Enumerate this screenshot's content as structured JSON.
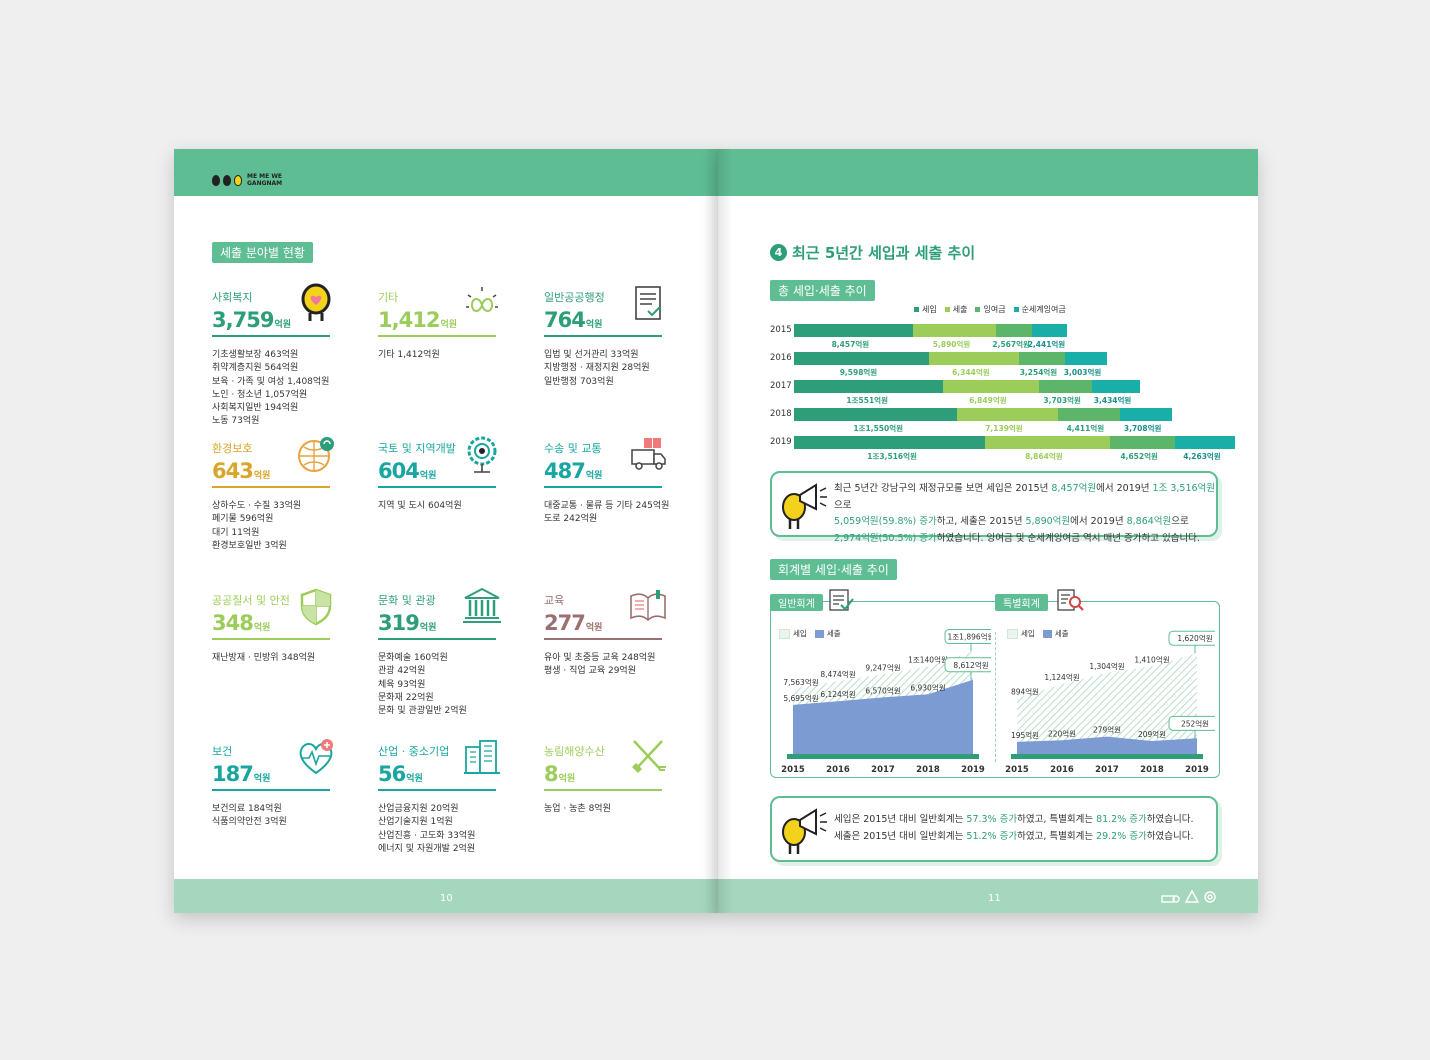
{
  "left_page": {
    "logo": {
      "line1": "ME ME WE",
      "line2": "GANGNAM"
    },
    "section_title": "세출 분야별 현황",
    "page_number": "10",
    "categories": [
      {
        "name": "사회복지",
        "value": "3,759",
        "unit": "억원",
        "color": "#2e9e7a",
        "name_color": "#2e9e7a",
        "icon": "lightbulb-heart-icon",
        "items": [
          "기초생활보장 463억원",
          "취약계층지원 564억원",
          "보육 · 가족 및 여성 1,408억원",
          "노인 · 청소년 1,057억원",
          "사회복지일반 194억원",
          "노동 73억원"
        ]
      },
      {
        "name": "기타",
        "value": "1,412",
        "unit": "억원",
        "color": "#9ccc5a",
        "name_color": "#9ccc5a",
        "icon": "infinity-sparkle-icon",
        "items": [
          "기타 1,412억원"
        ]
      },
      {
        "name": "일반공공행정",
        "value": "764",
        "unit": "억원",
        "color": "#2e9e7a",
        "name_color": "#2e9e7a",
        "icon": "document-check-icon",
        "items": [
          "입법 및 선거관리 33억원",
          "지방행정 · 재정지원 28억원",
          "일반행정 703억원"
        ]
      },
      {
        "name": "환경보호",
        "value": "643",
        "unit": "억원",
        "color": "#d9a52a",
        "name_color": "#d9a52a",
        "icon": "globe-recycle-icon",
        "items": [
          "상하수도 · 수질 33억원",
          "폐기물 596억원",
          "대기 11억원",
          "환경보호일반 3억원"
        ]
      },
      {
        "name": "국토 및 지역개발",
        "value": "604",
        "unit": "억원",
        "color": "#1aa6a0",
        "name_color": "#1aa6a0",
        "icon": "location-pin-gear-icon",
        "items": [
          "지역 및 도시 604억원"
        ]
      },
      {
        "name": "수송 및 교통",
        "value": "487",
        "unit": "억원",
        "color": "#1aa6a0",
        "name_color": "#1aa6a0",
        "icon": "delivery-truck-icon",
        "items": [
          "대중교통 · 물류 등 기타 245억원",
          "도로 242억원"
        ]
      },
      {
        "name": "공공질서 및 안전",
        "value": "348",
        "unit": "억원",
        "color": "#9ccc5a",
        "name_color": "#9ccc5a",
        "icon": "shield-icon",
        "items": [
          "재난방재 · 민방위 348억원"
        ]
      },
      {
        "name": "문화 및 관광",
        "value": "319",
        "unit": "억원",
        "color": "#2e9e7a",
        "name_color": "#2e9e7a",
        "icon": "museum-building-icon",
        "items": [
          "문화예술 160억원",
          "관광 42억원",
          "체육 93억원",
          "문화재 22억원",
          "문화  및 관광일반 2억원"
        ]
      },
      {
        "name": "교육",
        "value": "277",
        "unit": "억원",
        "color": "#9a7070",
        "name_color": "#9a7070",
        "icon": "open-book-icon",
        "items": [
          "유아 및 초중등 교육 248억원",
          "평생 · 직업 교육 29억원"
        ]
      },
      {
        "name": "보건",
        "value": "187",
        "unit": "억원",
        "color": "#1aa6a0",
        "name_color": "#1aa6a0",
        "icon": "heart-pulse-icon",
        "items": [
          "보건의료 184억원",
          "식품의약안전 3억원"
        ]
      },
      {
        "name": "산업 · 중소기업",
        "value": "56",
        "unit": "억원",
        "color": "#1aa6a0",
        "name_color": "#1aa6a0",
        "icon": "office-building-icon",
        "items": [
          "산업금융지원 20억원",
          "산업기술지원 1억원",
          "산업진흥 · 고도화 33억원",
          "에너지 및 자원개발 2억원"
        ]
      },
      {
        "name": "농림해양수산",
        "value": "8",
        "unit": "억원",
        "color": "#9ccc5a",
        "name_color": "#9ccc5a",
        "icon": "shovel-rake-icon",
        "items": [
          "농업 · 농촌 8억원"
        ]
      }
    ]
  },
  "right_page": {
    "heading_number": "4",
    "heading": "최근 5년간 세입과 세출 추이",
    "page_number": "11",
    "total_tag": "총 세입·세출 추이",
    "account_tag": "회계별 세입·세출 추이",
    "legend": [
      {
        "label": "세입",
        "color": "#2e9e7a"
      },
      {
        "label": "세출",
        "color": "#9ccc5a"
      },
      {
        "label": "잉여금",
        "color": "#5db56a"
      },
      {
        "label": "순세계잉여금",
        "color": "#1aaea8"
      }
    ],
    "note1": {
      "line1": [
        "최근 5년간 강남구의 재정규모를 보면 세입은 2015년 ",
        "8,457억원",
        "에서 2019년 ",
        "1조 3,516억원",
        "으로"
      ],
      "line2": [
        "5,059억원(59.8%) 증가",
        "하고, 세출은 2015년 ",
        "5,890억원",
        "에서 2019년 ",
        "8,864억원",
        "으로"
      ],
      "line3": [
        "2,974억원(50.5%) 증가",
        "하였습니다. 잉여금 및 순세계잉여금 역시 매년 증가하고 있습니다."
      ]
    },
    "note2": {
      "line1": [
        "세입은 2015년 대비 일반회계는 ",
        "57.3% 증가",
        "하였고, 특별회계는 ",
        "81.2% 증가",
        "하였습니다."
      ],
      "line2": [
        "세출은 2015년 대비 일반회계는 ",
        "51.2% 증가",
        "하였고, 특별회계는 ",
        "29.2% 증가",
        "하였습니다."
      ]
    }
  },
  "chart_data": [
    {
      "type": "bar",
      "orientation": "horizontal",
      "stacked": true,
      "categories": [
        "2015",
        "2016",
        "2017",
        "2018",
        "2019"
      ],
      "series": [
        {
          "name": "세입",
          "values": [
            8457,
            9598,
            10551,
            11550,
            13516
          ],
          "labels": [
            "8,457억원",
            "9,598억원",
            "1조551억원",
            "1조1,550억원",
            "1조3,516억원"
          ]
        },
        {
          "name": "세출",
          "values": [
            5890,
            6344,
            6849,
            7139,
            8864
          ],
          "labels": [
            "5,890억원",
            "6,344억원",
            "6,849억원",
            "7,139억원",
            "8,864억원"
          ]
        },
        {
          "name": "잉여금",
          "values": [
            2567,
            3254,
            3703,
            4411,
            4652
          ],
          "labels": [
            "2,567억원",
            "3,254억원",
            "3,703억원",
            "4,411억원",
            "4,652억원"
          ]
        },
        {
          "name": "순세계잉여금",
          "values": [
            2441,
            3003,
            3434,
            3708,
            4263
          ],
          "labels": [
            "2,441억원",
            "3,003억원",
            "3,434억원",
            "3,708억원",
            "4,263억원"
          ]
        }
      ],
      "legend": "top"
    },
    {
      "type": "area",
      "title": "일반회계",
      "x": [
        "2015",
        "2016",
        "2017",
        "2018",
        "2019"
      ],
      "series": [
        {
          "name": "세입",
          "values": [
            7563,
            8474,
            9247,
            10140,
            11896
          ],
          "labels": [
            "7,563억원",
            "8,474억원",
            "9,247억원",
            "1조140억원",
            "1조1,896억원"
          ]
        },
        {
          "name": "세출",
          "values": [
            5695,
            6124,
            6570,
            6930,
            8612
          ],
          "labels": [
            "5,695억원",
            "6,124억원",
            "6,570억원",
            "6,930억원",
            "8,612억원"
          ]
        }
      ],
      "legend": "top-left"
    },
    {
      "type": "area",
      "title": "특별회계",
      "x": [
        "2015",
        "2016",
        "2017",
        "2018",
        "2019"
      ],
      "series": [
        {
          "name": "세입",
          "values": [
            894,
            1124,
            1304,
            1410,
            1620
          ],
          "labels": [
            "894억원",
            "1,124억원",
            "1,304억원",
            "1,410억원",
            "1,620억원"
          ]
        },
        {
          "name": "세출",
          "values": [
            195,
            220,
            279,
            209,
            252
          ],
          "labels": [
            "195억원",
            "220억원",
            "279억원",
            "209억원",
            "252억원"
          ]
        }
      ],
      "legend": "top-left"
    }
  ]
}
